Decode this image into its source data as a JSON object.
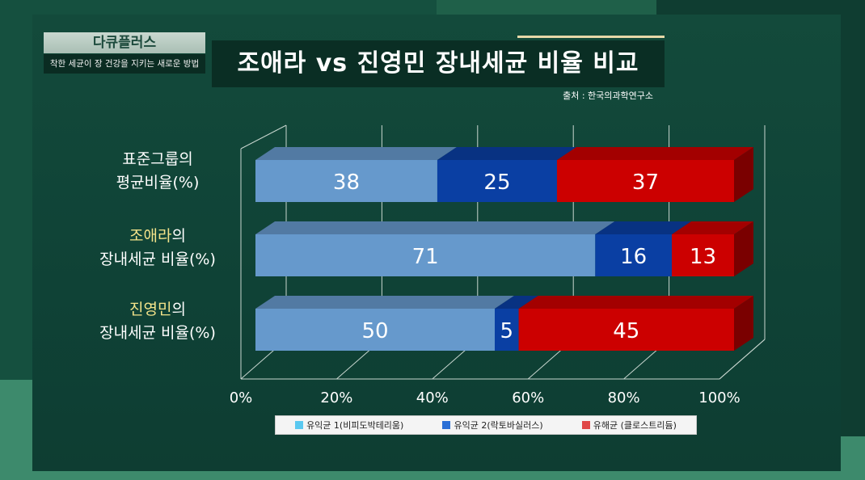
{
  "brand": {
    "title": "다큐플러스",
    "subtitle": "착한 세균이 장 건강을 지키는 새로운 방법"
  },
  "title": "조애라 vs 진영민 장내세균 비율 비교",
  "source": "출처 : 한국의과학연구소",
  "rows": [
    {
      "line1_highlight": "",
      "line1_rest": "표준그룹의",
      "line2": "평균비율(%)"
    },
    {
      "line1_highlight": "조애라",
      "line1_rest": "의",
      "line2": "장내세균 비율(%)"
    },
    {
      "line1_highlight": "진영민",
      "line1_rest": "의",
      "line2": "장내세균 비율(%)"
    }
  ],
  "legend": [
    {
      "label": "유익균 1(비피도박테리움)",
      "color": "#5ac8f0"
    },
    {
      "label": "유익균 2(락토바실러스)",
      "color": "#2a6fd6"
    },
    {
      "label": "유해균 (클로스트리듐)",
      "color": "#e04848"
    }
  ],
  "chart_data": {
    "type": "bar",
    "orientation": "horizontal",
    "stacked": true,
    "style": "3d",
    "categories": [
      "표준그룹의 평균비율(%)",
      "조애라의 장내세균 비율(%)",
      "진영민의 장내세균 비율(%)"
    ],
    "series": [
      {
        "name": "유익균 1(비피도박테리움)",
        "values": [
          38,
          71,
          50
        ],
        "color": "#6699cc"
      },
      {
        "name": "유익균 2(락토바실러스)",
        "values": [
          25,
          16,
          5
        ],
        "color": "#0a3fa3"
      },
      {
        "name": "유해균 (클로스트리듐)",
        "values": [
          37,
          13,
          45
        ],
        "color": "#cc0000"
      }
    ],
    "xlim": [
      0,
      100
    ],
    "ticks": [
      "0%",
      "20%",
      "40%",
      "60%",
      "80%",
      "100%"
    ],
    "grid": true
  }
}
